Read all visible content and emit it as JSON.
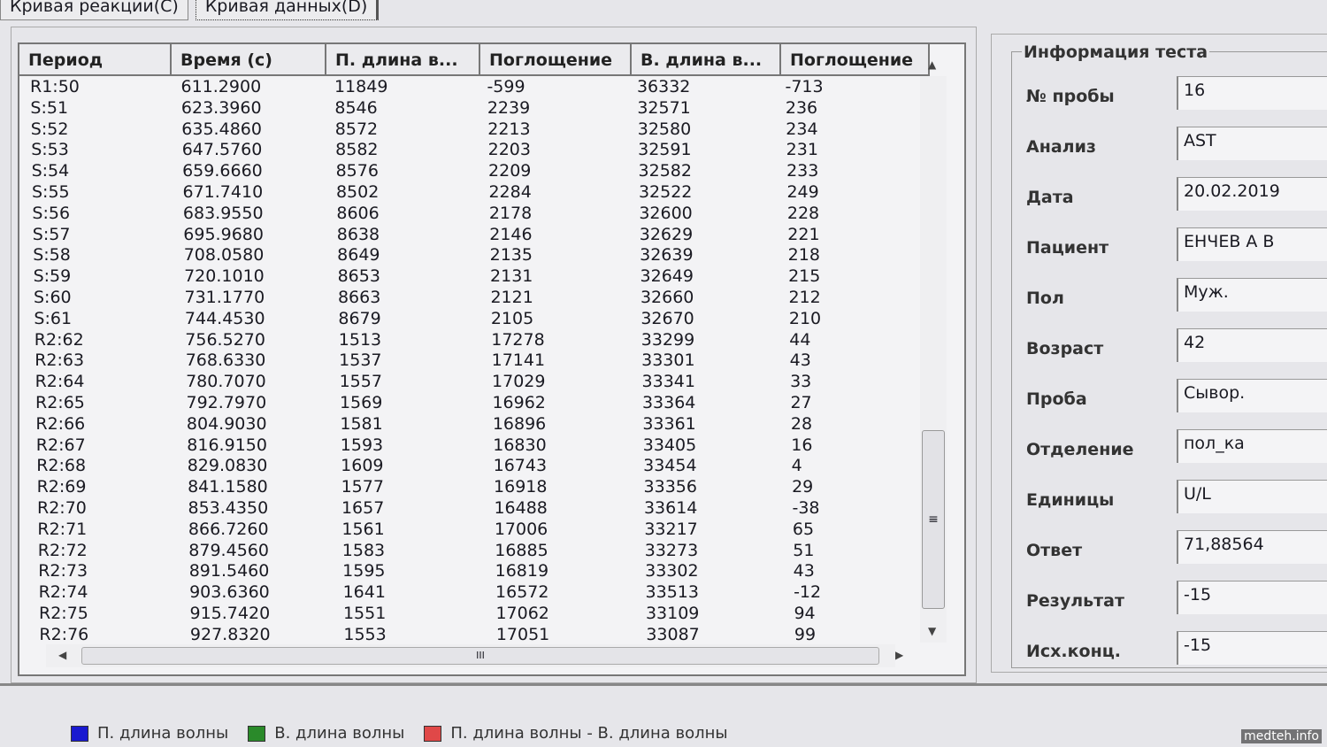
{
  "tabs": [
    {
      "label": "Кривая реакции(C)"
    },
    {
      "label": "Кривая данных(D)"
    }
  ],
  "table": {
    "columns": [
      "Период",
      "Время (с)",
      "П. длина в...",
      "Поглощение",
      "В. длина в...",
      "Поглощение"
    ],
    "rows": [
      [
        "R1:50",
        "611.2900",
        "11849",
        "-599",
        "36332",
        "-713"
      ],
      [
        "S:51",
        "623.3960",
        "8546",
        "2239",
        "32571",
        "236"
      ],
      [
        "S:52",
        "635.4860",
        "8572",
        "2213",
        "32580",
        "234"
      ],
      [
        "S:53",
        "647.5760",
        "8582",
        "2203",
        "32591",
        "231"
      ],
      [
        "S:54",
        "659.6660",
        "8576",
        "2209",
        "32582",
        "233"
      ],
      [
        "S:55",
        "671.7410",
        "8502",
        "2284",
        "32522",
        "249"
      ],
      [
        "S:56",
        "683.9550",
        "8606",
        "2178",
        "32600",
        "228"
      ],
      [
        "S:57",
        "695.9680",
        "8638",
        "2146",
        "32629",
        "221"
      ],
      [
        "S:58",
        "708.0580",
        "8649",
        "2135",
        "32639",
        "218"
      ],
      [
        "S:59",
        "720.1010",
        "8653",
        "2131",
        "32649",
        "215"
      ],
      [
        "S:60",
        "731.1770",
        "8663",
        "2121",
        "32660",
        "212"
      ],
      [
        "S:61",
        "744.4530",
        "8679",
        "2105",
        "32670",
        "210"
      ],
      [
        "R2:62",
        "756.5270",
        "1513",
        "17278",
        "33299",
        "44"
      ],
      [
        "R2:63",
        "768.6330",
        "1537",
        "17141",
        "33301",
        "43"
      ],
      [
        "R2:64",
        "780.7070",
        "1557",
        "17029",
        "33341",
        "33"
      ],
      [
        "R2:65",
        "792.7970",
        "1569",
        "16962",
        "33364",
        "27"
      ],
      [
        "R2:66",
        "804.9030",
        "1581",
        "16896",
        "33361",
        "28"
      ],
      [
        "R2:67",
        "816.9150",
        "1593",
        "16830",
        "33405",
        "16"
      ],
      [
        "R2:68",
        "829.0830",
        "1609",
        "16743",
        "33454",
        "4"
      ],
      [
        "R2:69",
        "841.1580",
        "1577",
        "16918",
        "33356",
        "29"
      ],
      [
        "R2:70",
        "853.4350",
        "1657",
        "16488",
        "33614",
        "-38"
      ],
      [
        "R2:71",
        "866.7260",
        "1561",
        "17006",
        "33217",
        "65"
      ],
      [
        "R2:72",
        "879.4560",
        "1583",
        "16885",
        "33273",
        "51"
      ],
      [
        "R2:73",
        "891.5460",
        "1595",
        "16819",
        "33302",
        "43"
      ],
      [
        "R2:74",
        "903.6360",
        "1641",
        "16572",
        "33513",
        "-12"
      ],
      [
        "R2:75",
        "915.7420",
        "1551",
        "17062",
        "33109",
        "94"
      ],
      [
        "R2:76",
        "927.8320",
        "1553",
        "17051",
        "33087",
        "99"
      ]
    ]
  },
  "info": {
    "title": "Информация теста",
    "fields": [
      {
        "label": "№ пробы",
        "value": "16"
      },
      {
        "label": "Анализ",
        "value": "AST"
      },
      {
        "label": "Дата",
        "value": "20.02.2019"
      },
      {
        "label": "Пациент",
        "value": "ЕНЧЕВ А В"
      },
      {
        "label": "Пол",
        "value": "Муж."
      },
      {
        "label": "Возраст",
        "value": "42"
      },
      {
        "label": "Проба",
        "value": "Сывор."
      },
      {
        "label": "Отделение",
        "value": "пол_ка"
      },
      {
        "label": "Единицы",
        "value": "U/L"
      },
      {
        "label": "Ответ",
        "value": "71,88564"
      },
      {
        "label": "Результат",
        "value": "-15"
      },
      {
        "label": "Исх.конц.",
        "value": "-15"
      }
    ]
  },
  "legend": [
    {
      "label": "П. длина волны",
      "color": "#1a1ad0"
    },
    {
      "label": "В. длина волны",
      "color": "#2a8a2a"
    },
    {
      "label": "П. длина волны - В. длина волны",
      "color": "#e04848"
    }
  ],
  "watermark": "medteh.info"
}
